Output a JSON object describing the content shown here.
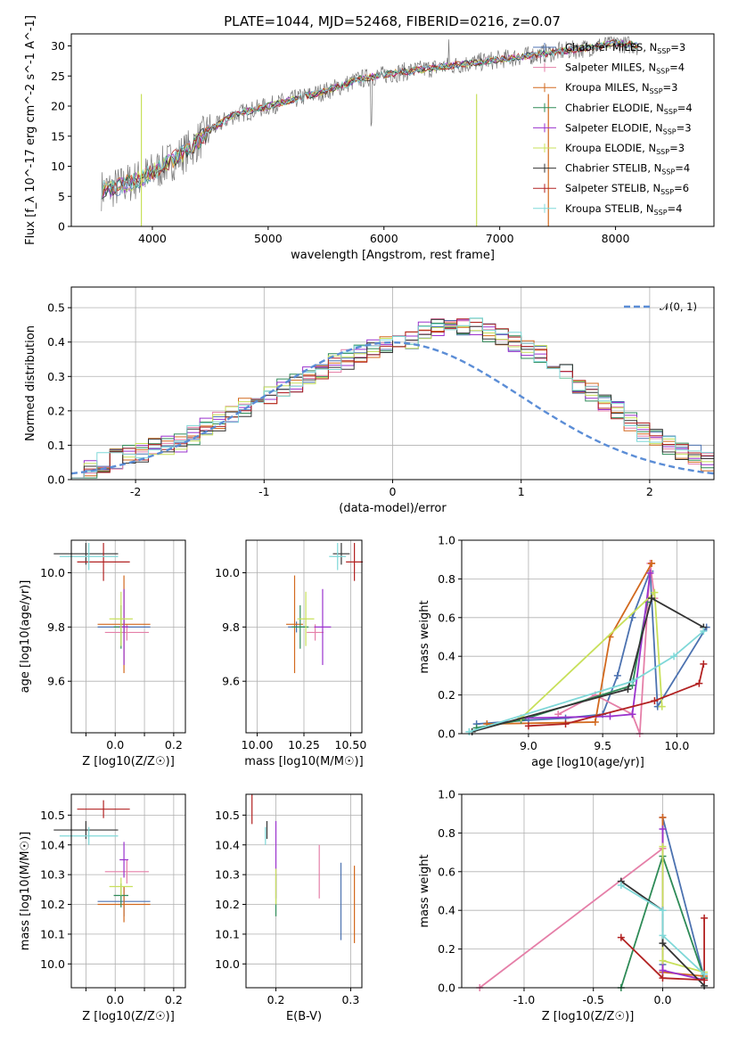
{
  "title": "PLATE=1044, MJD=52468, FIBERID=0216, z=0.07",
  "colors": {
    "Chabrier MILES": "#4c72b0",
    "Salpeter MILES": "#e57fa8",
    "Kroupa MILES": "#d2691e",
    "Chabrier ELODIE": "#2e8b57",
    "Salpeter ELODIE": "#9a32cd",
    "Kroupa ELODIE": "#c8e05a",
    "Chabrier STELIB": "#333333",
    "Salpeter STELIB": "#b22222",
    "Kroupa STELIB": "#7fd8d8",
    "normal_curve": "#5b8dd6"
  },
  "legend1": [
    {
      "name": "Chabrier MILES",
      "nssp": "3"
    },
    {
      "name": "Salpeter MILES",
      "nssp": "4"
    },
    {
      "name": "Kroupa MILES",
      "nssp": "3"
    },
    {
      "name": "Chabrier ELODIE",
      "nssp": "4"
    },
    {
      "name": "Salpeter ELODIE",
      "nssp": "3"
    },
    {
      "name": "Kroupa ELODIE",
      "nssp": "3"
    },
    {
      "name": "Chabrier STELIB",
      "nssp": "4"
    },
    {
      "name": "Salpeter STELIB",
      "nssp": "6"
    },
    {
      "name": "Kroupa STELIB",
      "nssp": "4"
    }
  ],
  "legend2": "𝒩(0, 1)",
  "chart_data": [
    {
      "id": "spectrum",
      "type": "line",
      "xlabel": "wavelength [Angstrom, rest frame]",
      "ylabel": "Flux [f_λ 10^-17 erg cm^-2 s^-1 A^-1]",
      "xlim": [
        3300,
        8850
      ],
      "ylim": [
        0,
        32
      ],
      "xticks": [
        4000,
        5000,
        6000,
        7000,
        8000
      ],
      "yticks": [
        0,
        5,
        10,
        15,
        20,
        25,
        30
      ],
      "trend": [
        [
          3550,
          6
        ],
        [
          3700,
          6.5
        ],
        [
          3900,
          8
        ],
        [
          4050,
          9.5
        ],
        [
          4300,
          12.5
        ],
        [
          4500,
          16
        ],
        [
          4700,
          18.5
        ],
        [
          4900,
          19.5
        ],
        [
          5100,
          20.5
        ],
        [
          5300,
          21.5
        ],
        [
          5500,
          22.5
        ],
        [
          5800,
          24.5
        ],
        [
          6100,
          25.5
        ],
        [
          6500,
          26.5
        ],
        [
          6900,
          27.5
        ],
        [
          7300,
          28.5
        ],
        [
          7700,
          29.5
        ],
        [
          8000,
          30.5
        ],
        [
          8200,
          30
        ]
      ]
    },
    {
      "id": "residuals",
      "type": "line",
      "xlabel": "(data-model)/error",
      "ylabel": "Normed distribution",
      "xlim": [
        -2.5,
        2.5
      ],
      "ylim": [
        0,
        0.56
      ],
      "xticks": [
        -2,
        -1,
        0,
        1,
        2
      ],
      "yticks": [
        0.0,
        0.1,
        0.2,
        0.3,
        0.4,
        0.5
      ],
      "bin_width": 0.1,
      "series": [
        {
          "name": "Chabrier MILES",
          "values": [
            0.02,
            0.03,
            0.05,
            0.06,
            0.07,
            0.08,
            0.09,
            0.1,
            0.11,
            0.13,
            0.15,
            0.17,
            0.19,
            0.21,
            0.23,
            0.25,
            0.27,
            0.28,
            0.3,
            0.32,
            0.34,
            0.35,
            0.37,
            0.38,
            0.39,
            0.4,
            0.41,
            0.43,
            0.44,
            0.45,
            0.45,
            0.44,
            0.43,
            0.42,
            0.4,
            0.38,
            0.36,
            0.34,
            0.31,
            0.28,
            0.25,
            0.22,
            0.2,
            0.17,
            0.14,
            0.12,
            0.1,
            0.08,
            0.07,
            0.05
          ]
        }
      ]
    },
    {
      "id": "Z-age",
      "type": "scatter",
      "xlabel": "Z [log10(Z/Z☉)]",
      "ylabel": "age [log10(age/yr)]",
      "xlim": [
        -0.15,
        0.24
      ],
      "ylim": [
        9.41,
        10.12
      ],
      "xticks": [
        -0.1,
        0.0,
        0.1,
        0.2
      ],
      "yticks": [
        9.6,
        9.8,
        10.0
      ],
      "xtick_labels": [
        "",
        "0.0",
        "",
        "0.2"
      ]
    },
    {
      "id": "mass-age",
      "type": "scatter",
      "xlabel": "mass [log10(M/M☉)]",
      "ylabel": "",
      "xlim": [
        9.94,
        10.56
      ],
      "ylim": [
        9.41,
        10.12
      ],
      "xticks": [
        10.0,
        10.25,
        10.5
      ],
      "yticks": [
        9.6,
        9.8,
        10.0
      ]
    },
    {
      "id": "age-weight",
      "type": "line",
      "xlabel": "age [log10(age/yr)]",
      "ylabel": "mass weight",
      "xlim": [
        8.55,
        10.25
      ],
      "ylim": [
        0,
        1
      ],
      "xticks": [
        9.0,
        9.5,
        10.0
      ],
      "yticks": [
        0.0,
        0.2,
        0.4,
        0.6,
        0.8,
        1.0
      ]
    },
    {
      "id": "Z-mass",
      "type": "scatter",
      "xlabel": "Z [log10(Z/Z☉)]",
      "ylabel": "mass [log10(M/M☉)]",
      "xlim": [
        -0.15,
        0.24
      ],
      "ylim": [
        9.92,
        10.57
      ],
      "xticks": [
        -0.1,
        0.0,
        0.1,
        0.2
      ],
      "yticks": [
        10.0,
        10.1,
        10.2,
        10.3,
        10.4,
        10.5
      ],
      "xtick_labels": [
        "",
        "0.0",
        "",
        "0.2"
      ]
    },
    {
      "id": "EBV-mass",
      "type": "scatter",
      "xlabel": "E(B-V)",
      "ylabel": "",
      "xlim": [
        0.16,
        0.315
      ],
      "ylim": [
        9.92,
        10.57
      ],
      "xticks": [
        0.2,
        0.3
      ],
      "yticks": [
        10.0,
        10.1,
        10.2,
        10.3,
        10.4,
        10.5
      ]
    },
    {
      "id": "Z-weight",
      "type": "line",
      "xlabel": "Z [log10(Z/Z☉)]",
      "ylabel": "mass weight",
      "xlim": [
        -1.45,
        0.37
      ],
      "ylim": [
        0,
        1
      ],
      "xticks": [
        -1.0,
        -0.5,
        0.0
      ],
      "yticks": [
        0.0,
        0.2,
        0.4,
        0.6,
        0.8,
        1.0
      ]
    }
  ],
  "points": [
    {
      "name": "Chabrier MILES",
      "Z": 0.03,
      "dZ": 0.18,
      "age": 9.8,
      "dage": 0.02,
      "mass": 10.21,
      "dmass": 0.05,
      "ebv": 0.287,
      "debv": 0.0,
      "dmass2": 0.13
    },
    {
      "name": "Salpeter MILES",
      "Z": 0.04,
      "dZ": 0.15,
      "age": 9.78,
      "dage": 0.03,
      "mass": 10.31,
      "dmass": 0.04,
      "ebv": 0.258,
      "debv": 0.0,
      "dmass2": 0.09
    },
    {
      "name": "Kroupa MILES",
      "Z": 0.03,
      "dZ": 0.18,
      "age": 9.81,
      "dage": 0.18,
      "mass": 10.2,
      "dmass": 0.06,
      "ebv": 0.305,
      "debv": 0.0,
      "dmass2": 0.13
    },
    {
      "name": "Chabrier ELODIE",
      "Z": 0.02,
      "dZ": 0.05,
      "age": 9.8,
      "dage": 0.08,
      "mass": 10.23,
      "dmass": 0.04,
      "ebv": 0.2,
      "debv": 0.0,
      "dmass2": 0.07
    },
    {
      "name": "Salpeter ELODIE",
      "Z": 0.03,
      "dZ": 0.03,
      "age": 9.8,
      "dage": 0.14,
      "mass": 10.35,
      "dmass": 0.06,
      "ebv": 0.2,
      "debv": 0.0,
      "dmass2": 0.13
    },
    {
      "name": "Kroupa ELODIE",
      "Z": 0.02,
      "dZ": 0.08,
      "age": 9.83,
      "dage": 0.1,
      "mass": 10.26,
      "dmass": 0.03,
      "ebv": 0.2,
      "debv": 0.0,
      "dmass2": 0.06
    },
    {
      "name": "Chabrier STELIB",
      "Z": -0.1,
      "dZ": 0.22,
      "age": 10.07,
      "dage": 0.04,
      "mass": 10.45,
      "dmass": 0.03,
      "ebv": 0.188,
      "debv": 0.0,
      "dmass2": 0.03
    },
    {
      "name": "Salpeter STELIB",
      "Z": -0.04,
      "dZ": 0.18,
      "age": 10.04,
      "dage": 0.07,
      "mass": 10.52,
      "dmass": 0.03,
      "ebv": 0.168,
      "debv": 0.0,
      "dmass2": 0.05
    },
    {
      "name": "Kroupa STELIB",
      "Z": -0.09,
      "dZ": 0.2,
      "age": 10.06,
      "dage": 0.05,
      "mass": 10.43,
      "dmass": 0.03,
      "ebv": 0.186,
      "debv": 0.0,
      "dmass2": 0.03
    }
  ],
  "weights": [
    {
      "name": "Chabrier MILES",
      "age": [
        8.65,
        9.0,
        9.25,
        9.5,
        9.6,
        9.7,
        9.82,
        9.87,
        10.2
      ],
      "w": [
        0.05,
        0.07,
        0.08,
        0.1,
        0.3,
        0.6,
        0.84,
        0.14,
        0.55
      ]
    },
    {
      "name": "Salpeter MILES",
      "age": [
        9.2,
        9.45,
        9.7,
        9.75,
        9.82,
        9.85
      ],
      "w": [
        0.1,
        0.2,
        0.1,
        0.0,
        0.88,
        0.7
      ]
    },
    {
      "name": "Kroupa MILES",
      "age": [
        8.72,
        9.45,
        9.55,
        9.83,
        9.83
      ],
      "w": [
        0.05,
        0.06,
        0.5,
        0.88,
        0.88
      ]
    },
    {
      "name": "Chabrier ELODIE",
      "age": [
        8.65,
        8.95,
        9.7,
        9.8
      ],
      "w": [
        0.03,
        0.07,
        0.25,
        0.68
      ]
    },
    {
      "name": "Salpeter ELODIE",
      "age": [
        8.95,
        9.55,
        9.7,
        9.82
      ],
      "w": [
        0.08,
        0.09,
        0.1,
        0.83
      ]
    },
    {
      "name": "Kroupa ELODIE",
      "age": [
        8.95,
        9.85,
        9.9
      ],
      "w": [
        0.08,
        0.73,
        0.14
      ]
    },
    {
      "name": "Chabrier STELIB",
      "age": [
        8.62,
        9.67,
        9.83,
        10.18
      ],
      "w": [
        0.01,
        0.23,
        0.7,
        0.55
      ]
    },
    {
      "name": "Salpeter STELIB",
      "age": [
        9.0,
        9.25,
        9.85,
        10.15,
        10.18
      ],
      "w": [
        0.04,
        0.05,
        0.17,
        0.26,
        0.36
      ]
    },
    {
      "name": "Kroupa STELIB",
      "age": [
        8.6,
        9.7,
        9.98,
        10.18
      ],
      "w": [
        0.01,
        0.27,
        0.4,
        0.53
      ]
    }
  ],
  "zweights": [
    {
      "name": "Chabrier MILES",
      "Z": [
        0.0,
        0.0,
        0.0,
        0.3
      ],
      "w": [
        0.08,
        0.12,
        0.88,
        0.05
      ]
    },
    {
      "name": "Salpeter MILES",
      "Z": [
        -1.32,
        0.0,
        0.0
      ],
      "w": [
        0.0,
        0.72,
        0.88
      ]
    },
    {
      "name": "Kroupa MILES",
      "Z": [
        0.0,
        0.0,
        0.3
      ],
      "w": [
        0.88,
        0.08,
        0.06
      ]
    },
    {
      "name": "Chabrier ELODIE",
      "Z": [
        -0.3,
        0.0,
        0.3
      ],
      "w": [
        0.0,
        0.68,
        0.05
      ]
    },
    {
      "name": "Salpeter ELODIE",
      "Z": [
        0.0,
        0.0,
        0.3
      ],
      "w": [
        0.82,
        0.09,
        0.04
      ]
    },
    {
      "name": "Kroupa ELODIE",
      "Z": [
        0.0,
        0.0,
        0.3
      ],
      "w": [
        0.73,
        0.14,
        0.08
      ]
    },
    {
      "name": "Chabrier STELIB",
      "Z": [
        -0.3,
        0.0,
        0.0,
        0.3
      ],
      "w": [
        0.55,
        0.4,
        0.23,
        0.01
      ]
    },
    {
      "name": "Salpeter STELIB",
      "Z": [
        -0.3,
        0.0,
        0.3,
        0.3
      ],
      "w": [
        0.26,
        0.05,
        0.04,
        0.36
      ]
    },
    {
      "name": "Kroupa STELIB",
      "Z": [
        -0.3,
        0.0,
        0.0,
        0.3
      ],
      "w": [
        0.53,
        0.4,
        0.27,
        0.07
      ]
    }
  ]
}
